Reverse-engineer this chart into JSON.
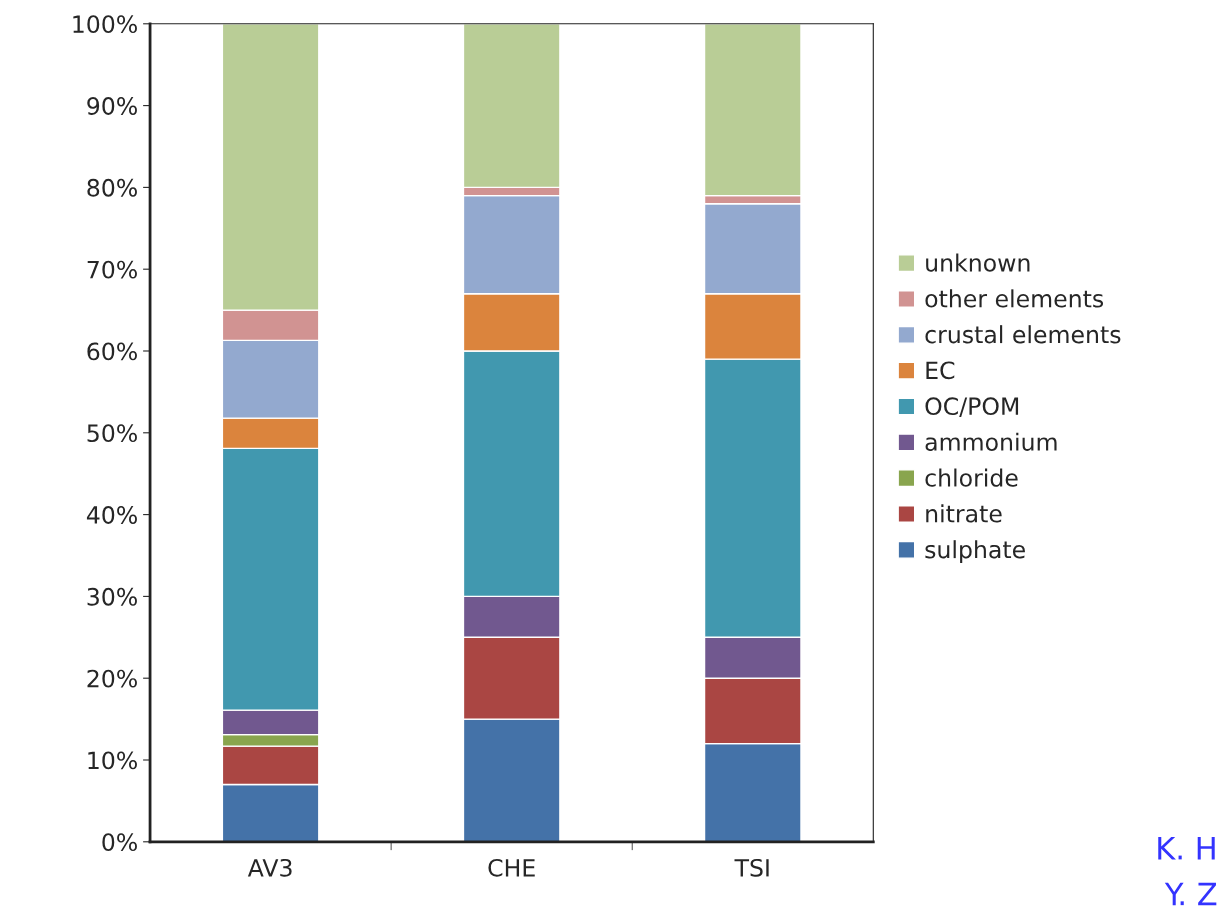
{
  "chart_data": {
    "type": "bar",
    "stacked": true,
    "categories": [
      "AV3",
      "CHE",
      "TSI"
    ],
    "series": [
      {
        "name": "sulphate",
        "color": "#4472a8",
        "values": [
          7,
          15,
          12
        ]
      },
      {
        "name": "nitrate",
        "color": "#aa4643",
        "values": [
          4.7,
          10,
          8
        ]
      },
      {
        "name": "chloride",
        "color": "#89a54e",
        "values": [
          1.4,
          0,
          0
        ]
      },
      {
        "name": "ammonium",
        "color": "#71588f",
        "values": [
          3,
          5,
          5
        ]
      },
      {
        "name": "OC/POM",
        "color": "#4198af",
        "values": [
          32,
          30,
          34
        ]
      },
      {
        "name": "EC",
        "color": "#db843d",
        "values": [
          3.7,
          7,
          8
        ]
      },
      {
        "name": "crustal elements",
        "color": "#93a9cf",
        "values": [
          9.5,
          12,
          11
        ]
      },
      {
        "name": "other elements",
        "color": "#d19392",
        "values": [
          3.7,
          1,
          1
        ]
      },
      {
        "name": "unknown",
        "color": "#b9cd96",
        "values": [
          35,
          20,
          21
        ]
      }
    ],
    "ylim": [
      0,
      100
    ],
    "yticks": [
      {
        "value": 0,
        "label": "0%"
      },
      {
        "value": 10,
        "label": "10%"
      },
      {
        "value": 20,
        "label": "20%"
      },
      {
        "value": 30,
        "label": "30%"
      },
      {
        "value": 40,
        "label": "40%"
      },
      {
        "value": 50,
        "label": "50%"
      },
      {
        "value": 60,
        "label": "60%"
      },
      {
        "value": 70,
        "label": "70%"
      },
      {
        "value": 80,
        "label": "80%"
      },
      {
        "value": 90,
        "label": "90%"
      },
      {
        "value": 100,
        "label": "100%"
      }
    ],
    "grid": false,
    "legend": "right",
    "annotations": [
      "K. H",
      "Y. Z"
    ]
  }
}
